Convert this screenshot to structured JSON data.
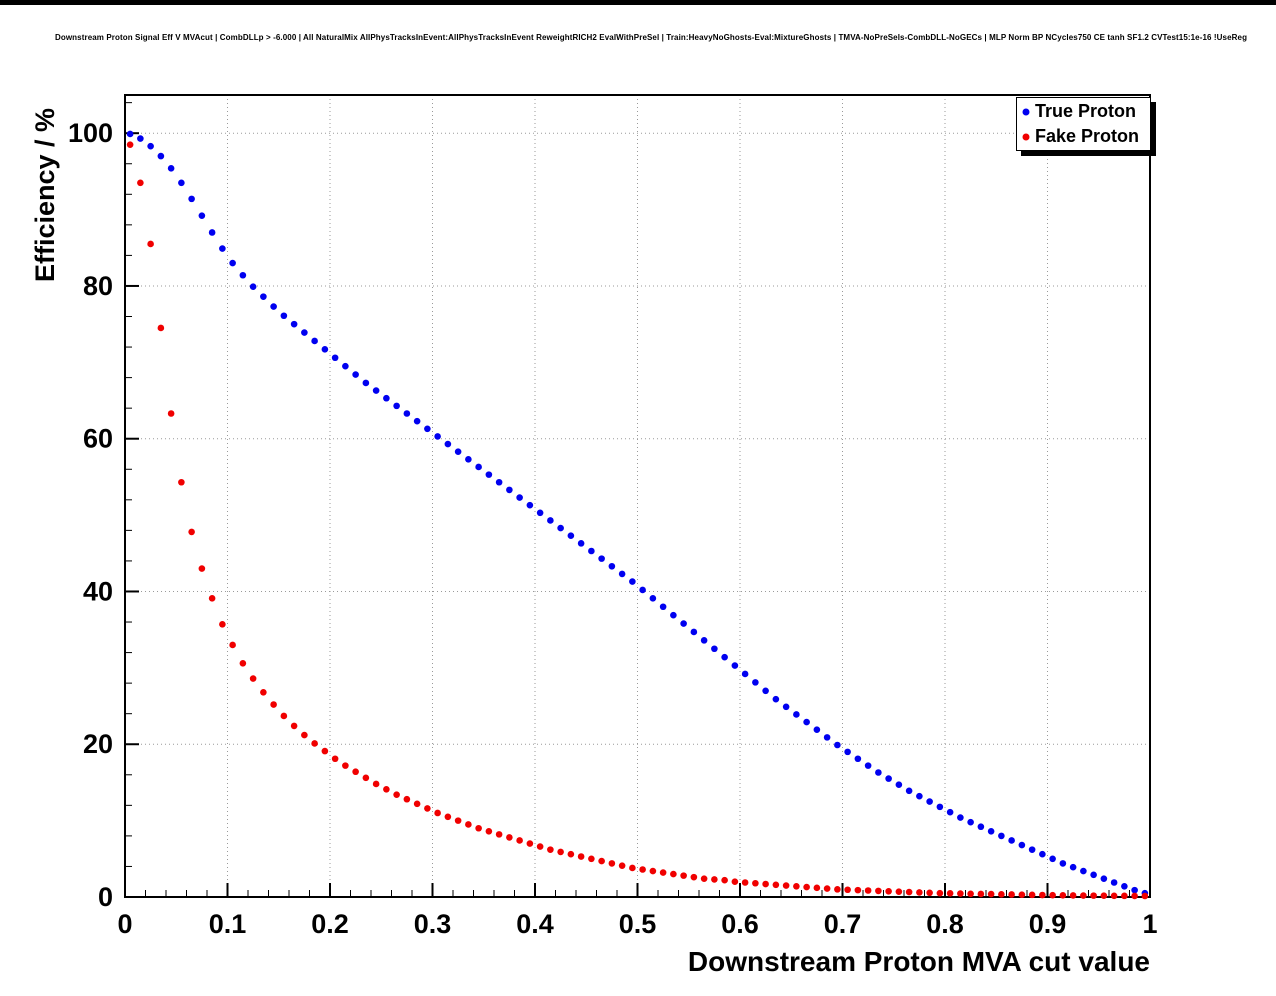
{
  "title": "Downstream Proton Signal Eff V MVAcut | CombDLLp > -6.000 | All NaturalMix AllPhysTracksInEvent:AllPhysTracksInEvent ReweightRICH2 EvalWithPreSel | Train:HeavyNoGhosts-Eval:MixtureGhosts | TMVA-NoPreSels-CombDLL-NoGECs | MLP Norm BP NCycles750 CE tanh SF1.2 CVTest15:1e-16 !UseReg",
  "chart_data": {
    "type": "scatter",
    "title": "Downstream Proton Signal Eff V MVAcut | CombDLLp > -6.000 | All NaturalMix AllPhysTracksInEvent:AllPhysTracksInEvent ReweightRICH2 EvalWithPreSel | Train:HeavyNoGhosts-Eval:MixtureGhosts | TMVA-NoPreSels-CombDLL-NoGECs | MLP Norm BP NCycles750 CE tanh SF1.2 CVTest15:1e-16 !UseReg",
    "xlabel": "Downstream Proton MVA cut value",
    "ylabel": "Efficiency / %",
    "xlim": [
      0,
      1
    ],
    "ylim": [
      0,
      105
    ],
    "grid": true,
    "legend_position": "top-right",
    "x_tick_values": [
      0,
      0.1,
      0.2,
      0.3,
      0.4,
      0.5,
      0.6,
      0.7,
      0.8,
      0.9,
      1
    ],
    "x_tick_labels": [
      "0",
      "0.1",
      "0.2",
      "0.3",
      "0.4",
      "0.5",
      "0.6",
      "0.7",
      "0.8",
      "0.9",
      "1"
    ],
    "y_tick_values": [
      0,
      20,
      40,
      60,
      80,
      100
    ],
    "y_tick_labels": [
      "0",
      "20",
      "40",
      "60",
      "80",
      "100"
    ],
    "x_minor_step": 0.02,
    "y_minor_step": 4,
    "colors": {
      "grid": "#9a9a9a",
      "frame": "#000000"
    },
    "x": [
      0.005,
      0.015,
      0.025,
      0.035,
      0.045,
      0.055,
      0.065,
      0.075,
      0.085,
      0.095,
      0.105,
      0.115,
      0.125,
      0.135,
      0.145,
      0.155,
      0.165,
      0.175,
      0.185,
      0.195,
      0.205,
      0.215,
      0.225,
      0.235,
      0.245,
      0.255,
      0.265,
      0.275,
      0.285,
      0.295,
      0.305,
      0.315,
      0.325,
      0.335,
      0.345,
      0.355,
      0.365,
      0.375,
      0.385,
      0.395,
      0.405,
      0.415,
      0.425,
      0.435,
      0.445,
      0.455,
      0.465,
      0.475,
      0.485,
      0.495,
      0.505,
      0.515,
      0.525,
      0.535,
      0.545,
      0.555,
      0.565,
      0.575,
      0.585,
      0.595,
      0.605,
      0.615,
      0.625,
      0.635,
      0.645,
      0.655,
      0.665,
      0.675,
      0.685,
      0.695,
      0.705,
      0.715,
      0.725,
      0.735,
      0.745,
      0.755,
      0.765,
      0.775,
      0.785,
      0.795,
      0.805,
      0.815,
      0.825,
      0.835,
      0.845,
      0.855,
      0.865,
      0.875,
      0.885,
      0.895,
      0.905,
      0.915,
      0.925,
      0.935,
      0.945,
      0.955,
      0.965,
      0.975,
      0.985,
      0.995
    ],
    "series": [
      {
        "name": "True Proton",
        "color": "#0000f0",
        "values": [
          99.9,
          99.3,
          98.3,
          97.0,
          95.4,
          93.5,
          91.4,
          89.2,
          87.0,
          84.9,
          83.0,
          81.4,
          79.9,
          78.6,
          77.3,
          76.1,
          75.0,
          73.9,
          72.8,
          71.7,
          70.6,
          69.5,
          68.4,
          67.3,
          66.3,
          65.3,
          64.3,
          63.3,
          62.3,
          61.3,
          60.3,
          59.3,
          58.3,
          57.3,
          56.3,
          55.3,
          54.3,
          53.3,
          52.3,
          51.3,
          50.3,
          49.3,
          48.3,
          47.3,
          46.3,
          45.3,
          44.3,
          43.3,
          42.3,
          41.3,
          40.2,
          39.1,
          38.0,
          36.9,
          35.8,
          34.7,
          33.6,
          32.5,
          31.4,
          30.3,
          29.2,
          28.1,
          27.0,
          25.9,
          24.9,
          23.9,
          22.9,
          21.9,
          20.9,
          19.9,
          19.0,
          18.1,
          17.2,
          16.3,
          15.5,
          14.7,
          13.9,
          13.2,
          12.5,
          11.8,
          11.1,
          10.4,
          9.8,
          9.2,
          8.6,
          8.0,
          7.4,
          6.8,
          6.2,
          5.6,
          5.0,
          4.4,
          3.9,
          3.4,
          2.9,
          2.4,
          1.9,
          1.4,
          0.9,
          0.5
        ]
      },
      {
        "name": "Fake Proton",
        "color": "#f00000",
        "values": [
          98.5,
          93.5,
          85.5,
          74.5,
          63.3,
          54.3,
          47.8,
          43.0,
          39.1,
          35.7,
          33.0,
          30.6,
          28.6,
          26.8,
          25.2,
          23.7,
          22.4,
          21.2,
          20.1,
          19.1,
          18.1,
          17.2,
          16.4,
          15.6,
          14.8,
          14.1,
          13.4,
          12.8,
          12.2,
          11.6,
          11.0,
          10.5,
          10.0,
          9.5,
          9.0,
          8.6,
          8.2,
          7.8,
          7.4,
          7.0,
          6.6,
          6.2,
          5.9,
          5.6,
          5.3,
          5.0,
          4.7,
          4.4,
          4.1,
          3.8,
          3.6,
          3.4,
          3.2,
          3.0,
          2.8,
          2.6,
          2.4,
          2.3,
          2.2,
          2.0,
          1.9,
          1.8,
          1.7,
          1.6,
          1.5,
          1.4,
          1.3,
          1.2,
          1.1,
          1.0,
          0.95,
          0.9,
          0.85,
          0.8,
          0.75,
          0.7,
          0.65,
          0.6,
          0.55,
          0.5,
          0.48,
          0.45,
          0.42,
          0.4,
          0.38,
          0.35,
          0.33,
          0.3,
          0.28,
          0.26,
          0.24,
          0.22,
          0.2,
          0.19,
          0.18,
          0.17,
          0.16,
          0.15,
          0.14,
          0.13
        ]
      }
    ]
  }
}
